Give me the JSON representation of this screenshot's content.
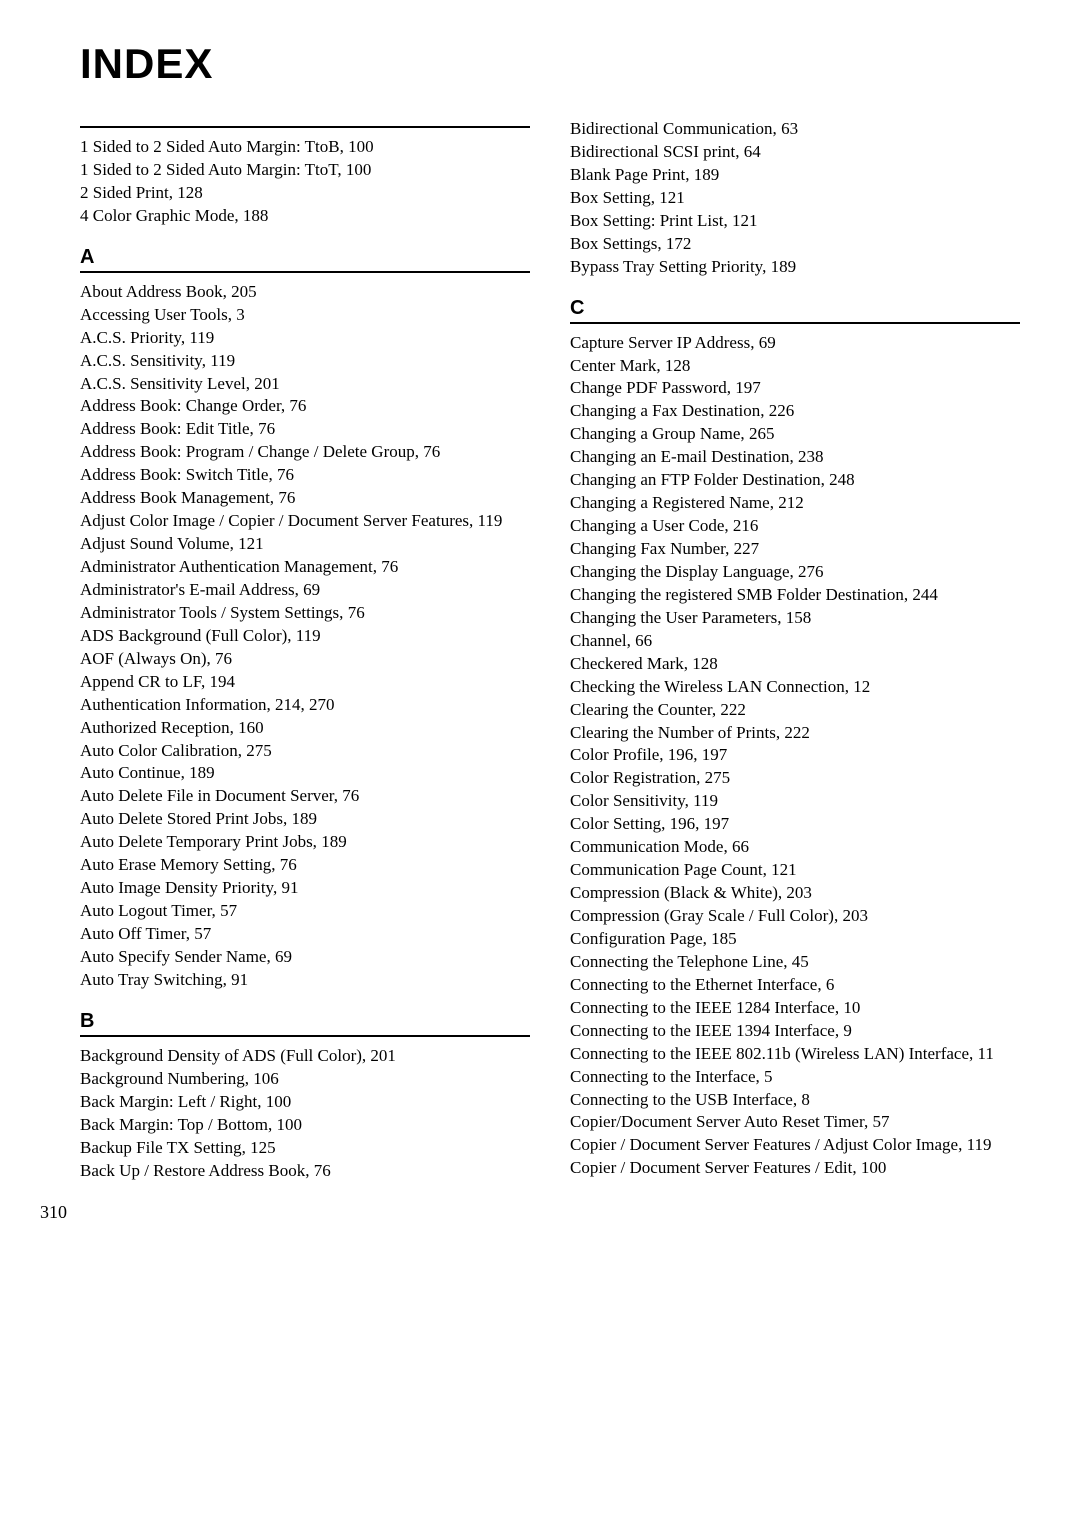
{
  "title": "INDEX",
  "pageNumber": "310",
  "left": {
    "pre": [
      {
        "label": "1 Sided to 2 Sided Auto Margin: TtoB,",
        "pages": "100"
      },
      {
        "label": "1 Sided to 2 Sided Auto Margin: TtoT,",
        "pages": "100"
      },
      {
        "label": "2 Sided Print,",
        "pages": "128"
      },
      {
        "label": "4 Color Graphic Mode,",
        "pages": "188"
      }
    ],
    "sections": [
      {
        "letter": "A",
        "entries": [
          {
            "label": "About Address Book,",
            "pages": "205"
          },
          {
            "label": "Accessing User Tools,",
            "pages": "3"
          },
          {
            "label": "A.C.S. Priority,",
            "pages": "119"
          },
          {
            "label": "A.C.S. Sensitivity,",
            "pages": "119"
          },
          {
            "label": "A.C.S. Sensitivity Level,",
            "pages": "201"
          },
          {
            "label": "Address Book: Change Order,",
            "pages": "76"
          },
          {
            "label": "Address Book: Edit Title,",
            "pages": "76"
          },
          {
            "label": "Address Book: Program / Change / Delete Group,",
            "pages": "76"
          },
          {
            "label": "Address Book: Switch Title,",
            "pages": "76"
          },
          {
            "label": "Address Book Management,",
            "pages": "76"
          },
          {
            "label": "Adjust Color Image / Copier / Document Server Features,",
            "pages": "119"
          },
          {
            "label": "Adjust Sound Volume,",
            "pages": "121"
          },
          {
            "label": "Administrator Authentication Management,",
            "pages": "76"
          },
          {
            "label": "Administrator's E-mail Address,",
            "pages": "69"
          },
          {
            "label": "Administrator Tools / System Settings,",
            "pages": "76"
          },
          {
            "label": "ADS Background (Full Color),",
            "pages": "119"
          },
          {
            "label": "AOF (Always On),",
            "pages": "76"
          },
          {
            "label": "Append CR to LF,",
            "pages": "194"
          },
          {
            "label": "Authentication Information,",
            "pages": "214, 270"
          },
          {
            "label": "Authorized Reception,",
            "pages": "160"
          },
          {
            "label": "Auto Color Calibration,",
            "pages": "275"
          },
          {
            "label": "Auto Continue,",
            "pages": "189"
          },
          {
            "label": "Auto Delete File in Document Server,",
            "pages": "76"
          },
          {
            "label": "Auto Delete Stored Print Jobs,",
            "pages": "189"
          },
          {
            "label": "Auto Delete Temporary Print Jobs,",
            "pages": "189"
          },
          {
            "label": "Auto Erase Memory Setting,",
            "pages": "76"
          },
          {
            "label": "Auto Image Density Priority,",
            "pages": "91"
          },
          {
            "label": "Auto Logout Timer,",
            "pages": "57"
          },
          {
            "label": "Auto Off Timer,",
            "pages": "57"
          },
          {
            "label": "Auto Specify Sender Name,",
            "pages": "69"
          },
          {
            "label": "Auto Tray Switching,",
            "pages": "91"
          }
        ]
      },
      {
        "letter": "B",
        "entries": [
          {
            "label": "Background Density of ADS (Full Color),",
            "pages": "201"
          },
          {
            "label": "Background Numbering,",
            "pages": "106"
          },
          {
            "label": "Back Margin: Left / Right,",
            "pages": "100"
          },
          {
            "label": "Back Margin: Top / Bottom,",
            "pages": "100"
          },
          {
            "label": "Backup File TX Setting,",
            "pages": "125"
          },
          {
            "label": "Back Up / Restore Address Book,",
            "pages": "76"
          }
        ]
      }
    ]
  },
  "right": {
    "pre": [
      {
        "label": "Bidirectional Communication,",
        "pages": "63"
      },
      {
        "label": "Bidirectional SCSI print,",
        "pages": "64"
      },
      {
        "label": "Blank Page Print,",
        "pages": "189"
      },
      {
        "label": "Box Setting,",
        "pages": "121"
      },
      {
        "label": "Box Setting: Print List,",
        "pages": "121"
      },
      {
        "label": "Box Settings,",
        "pages": "172"
      },
      {
        "label": "Bypass Tray Setting Priority,",
        "pages": "189"
      }
    ],
    "sections": [
      {
        "letter": "C",
        "entries": [
          {
            "label": "Capture Server IP Address,",
            "pages": "69"
          },
          {
            "label": "Center Mark,",
            "pages": "128"
          },
          {
            "label": "Change PDF Password,",
            "pages": "197"
          },
          {
            "label": "Changing a Fax Destination,",
            "pages": "226"
          },
          {
            "label": "Changing a Group Name,",
            "pages": "265"
          },
          {
            "label": "Changing an E-mail Destination,",
            "pages": "238"
          },
          {
            "label": "Changing an FTP Folder Destination,",
            "pages": "248"
          },
          {
            "label": "Changing a Registered Name,",
            "pages": "212"
          },
          {
            "label": "Changing a User Code,",
            "pages": "216"
          },
          {
            "label": "Changing Fax Number,",
            "pages": "227"
          },
          {
            "label": "Changing the Display Language,",
            "pages": "276"
          },
          {
            "label": "Changing the registered SMB Folder Destination,",
            "pages": "244"
          },
          {
            "label": "Changing the User Parameters,",
            "pages": "158"
          },
          {
            "label": "Channel,",
            "pages": "66"
          },
          {
            "label": "Checkered Mark,",
            "pages": "128"
          },
          {
            "label": "Checking the Wireless LAN Connection,",
            "pages": "12"
          },
          {
            "label": "Clearing the Counter,",
            "pages": "222"
          },
          {
            "label": "Clearing the Number of Prints,",
            "pages": "222"
          },
          {
            "label": "Color Profile,",
            "pages": "196, 197"
          },
          {
            "label": "Color Registration,",
            "pages": "275"
          },
          {
            "label": "Color Sensitivity,",
            "pages": "119"
          },
          {
            "label": "Color Setting,",
            "pages": "196, 197"
          },
          {
            "label": "Communication Mode,",
            "pages": "66"
          },
          {
            "label": "Communication Page Count,",
            "pages": "121"
          },
          {
            "label": "Compression (Black & White),",
            "pages": "203"
          },
          {
            "label": "Compression (Gray Scale / Full Color),",
            "pages": "203"
          },
          {
            "label": "Configuration Page,",
            "pages": "185"
          },
          {
            "label": "Connecting the Telephone Line,",
            "pages": "45"
          },
          {
            "label": "Connecting to the Ethernet Interface,",
            "pages": "6"
          },
          {
            "label": "Connecting to the IEEE 1284 Interface,",
            "pages": "10"
          },
          {
            "label": "Connecting to the IEEE 1394 Interface,",
            "pages": "9"
          },
          {
            "label": "Connecting to the IEEE 802.11b (Wireless LAN) Interface,",
            "pages": "11"
          },
          {
            "label": "Connecting to the Interface,",
            "pages": "5"
          },
          {
            "label": "Connecting to the USB Interface,",
            "pages": "8"
          },
          {
            "label": "Copier/Document Server Auto Reset Timer,",
            "pages": "57"
          },
          {
            "label": "Copier / Document Server Features / Adjust Color Image,",
            "pages": "119"
          },
          {
            "label": "Copier / Document Server Features / Edit,",
            "pages": "100"
          }
        ]
      }
    ]
  }
}
